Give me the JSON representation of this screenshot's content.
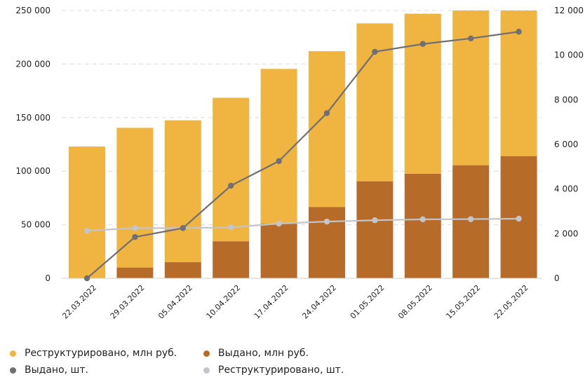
{
  "chart_data": {
    "type": "bar",
    "stacked": true,
    "title": "",
    "xlabel": "",
    "ylabel": "",
    "categories": [
      "22.03.2022",
      "29.03.2022",
      "05.04.2022",
      "10.04.2022",
      "17.04.2022",
      "24.04.2022",
      "01.05.2022",
      "08.05.2022",
      "15.05.2022",
      "22.05.2022"
    ],
    "series": [
      {
        "name": "Выдано, млн руб.",
        "kind": "bar",
        "axis": "left",
        "color": "#b76b28",
        "values": [
          0,
          10000,
          15000,
          34500,
          51000,
          66500,
          90500,
          97500,
          105500,
          114000
        ]
      },
      {
        "name": "Реструктурировано, млн руб.",
        "kind": "bar",
        "axis": "left",
        "color": "#f0b440",
        "values": [
          123000,
          130500,
          132500,
          134000,
          144500,
          145500,
          147500,
          149500,
          144500,
          136000
        ]
      },
      {
        "name": "Выдано, шт.",
        "kind": "line",
        "axis": "right",
        "color": "#6f6f74",
        "values": [
          0,
          1850,
          2250,
          4150,
          5250,
          7400,
          10150,
          10500,
          10750,
          11050
        ]
      },
      {
        "name": "Реструктурировано, шт.",
        "kind": "line",
        "axis": "right",
        "color": "#c2c5cc",
        "values": [
          2130,
          2250,
          2250,
          2280,
          2450,
          2540,
          2600,
          2640,
          2650,
          2670
        ]
      }
    ],
    "y_left": {
      "min": 0,
      "max": 250000,
      "ticks": [
        0,
        50000,
        100000,
        150000,
        200000,
        250000
      ],
      "tick_labels": [
        "0",
        "50 000",
        "100 000",
        "150 000",
        "200 000",
        "250 000"
      ]
    },
    "y_right": {
      "min": 0,
      "max": 12000,
      "ticks": [
        0,
        2000,
        4000,
        6000,
        8000,
        10000,
        12000
      ],
      "tick_labels": [
        "0",
        "2 000",
        "4 000",
        "6 000",
        "8 000",
        "10 000",
        "12 000"
      ]
    },
    "grid": true,
    "legend_position": "bottom-left"
  },
  "legend": {
    "items": [
      {
        "label": "Реструктурировано, млн руб.",
        "color": "#f0b440"
      },
      {
        "label": "Выдано, млн руб.",
        "color": "#b76b28"
      },
      {
        "label": "Выдано, шт.",
        "color": "#6f6f74"
      },
      {
        "label": "Реструктурировано, шт.",
        "color": "#c2c5cc"
      }
    ]
  }
}
